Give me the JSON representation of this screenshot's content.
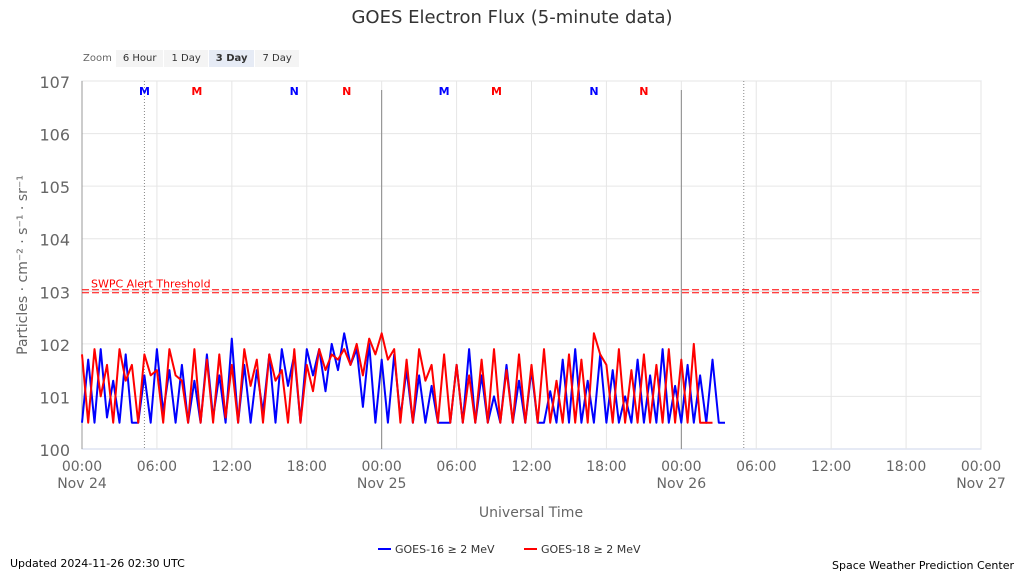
{
  "chart_data": {
    "type": "line",
    "title": "GOES Electron Flux (5-minute data)",
    "xlabel": "Universal Time",
    "ylabel": "Particles · cm⁻² · s⁻¹ · sr⁻¹",
    "y_scale": "log10",
    "ylim": [
      0,
      7
    ],
    "xlim_hours": [
      0,
      72
    ],
    "y_tick_labels": [
      "100",
      "101",
      "102",
      "103",
      "104",
      "105",
      "106",
      "107"
    ],
    "x_tick_labels": [
      {
        "h": 0,
        "time": "00:00",
        "date": "Nov 24"
      },
      {
        "h": 6,
        "time": "06:00"
      },
      {
        "h": 12,
        "time": "12:00"
      },
      {
        "h": 18,
        "time": "18:00"
      },
      {
        "h": 24,
        "time": "00:00",
        "date": "Nov 25"
      },
      {
        "h": 30,
        "time": "06:00"
      },
      {
        "h": 36,
        "time": "12:00"
      },
      {
        "h": 42,
        "time": "18:00"
      },
      {
        "h": 48,
        "time": "00:00",
        "date": "Nov 26"
      },
      {
        "h": 54,
        "time": "06:00"
      },
      {
        "h": 60,
        "time": "12:00"
      },
      {
        "h": 66,
        "time": "18:00"
      },
      {
        "h": 72,
        "time": "00:00",
        "date": "Nov 27"
      }
    ],
    "threshold": {
      "label": "SWPC Alert Threshold",
      "log_value": 3,
      "color": "#ff0000"
    },
    "markers": [
      {
        "h": 5.0,
        "label": "M",
        "color": "#0000ff"
      },
      {
        "h": 9.2,
        "label": "M",
        "color": "#ff0000"
      },
      {
        "h": 17.0,
        "label": "N",
        "color": "#0000ff"
      },
      {
        "h": 21.2,
        "label": "N",
        "color": "#ff0000"
      },
      {
        "h": 29.0,
        "label": "M",
        "color": "#0000ff"
      },
      {
        "h": 33.2,
        "label": "M",
        "color": "#ff0000"
      },
      {
        "h": 41.0,
        "label": "N",
        "color": "#0000ff"
      },
      {
        "h": 45.0,
        "label": "N",
        "color": "#ff0000"
      }
    ],
    "dotted_lines_h": [
      5.0,
      53.0
    ],
    "solid_lines_h": [
      24,
      48
    ],
    "series": [
      {
        "name": "GOES-16 ≥ 2 MeV",
        "color": "#0000ff",
        "step_hours": 0.5,
        "log_values": [
          0.5,
          1.7,
          0.5,
          1.9,
          0.6,
          1.3,
          0.5,
          1.8,
          0.5,
          0.5,
          1.4,
          0.5,
          1.9,
          0.7,
          1.5,
          0.5,
          1.6,
          0.5,
          1.3,
          0.5,
          1.8,
          0.6,
          1.4,
          0.5,
          2.1,
          0.5,
          1.6,
          0.5,
          1.5,
          0.7,
          1.8,
          0.5,
          1.9,
          1.2,
          1.8,
          0.5,
          1.9,
          1.4,
          1.9,
          1.1,
          2.0,
          1.5,
          2.2,
          1.6,
          1.9,
          0.8,
          2.0,
          0.5,
          1.7,
          0.5,
          1.8,
          0.6,
          1.5,
          0.5,
          1.4,
          0.5,
          1.2,
          0.5,
          0.5,
          0.5,
          1.6,
          0.5,
          1.9,
          0.5,
          1.4,
          0.5,
          1.0,
          0.5,
          1.6,
          0.5,
          1.3,
          0.5,
          1.5,
          0.5,
          0.5,
          1.1,
          0.5,
          1.7,
          0.5,
          1.9,
          0.5,
          1.3,
          0.5,
          1.8,
          0.5,
          1.5,
          0.5,
          1.0,
          0.5,
          1.7,
          0.5,
          1.4,
          0.5,
          1.9,
          0.5,
          1.2,
          0.5,
          1.6,
          0.5,
          1.4,
          0.5,
          1.7,
          0.5,
          0.5
        ]
      },
      {
        "name": "GOES-18 ≥ 2 MeV",
        "color": "#ff0000",
        "step_hours": 0.5,
        "log_values": [
          1.8,
          0.5,
          1.9,
          1.0,
          1.6,
          0.5,
          1.9,
          1.3,
          1.6,
          0.5,
          1.8,
          1.4,
          1.5,
          0.5,
          1.9,
          1.4,
          1.3,
          0.5,
          1.9,
          0.5,
          1.7,
          0.5,
          1.8,
          0.6,
          1.6,
          0.5,
          1.9,
          1.2,
          1.7,
          0.5,
          1.8,
          1.3,
          1.5,
          0.5,
          1.9,
          0.5,
          1.6,
          1.1,
          1.9,
          1.5,
          1.8,
          1.7,
          1.9,
          1.6,
          2.0,
          1.4,
          2.1,
          1.8,
          2.2,
          1.7,
          1.9,
          0.5,
          1.7,
          0.5,
          1.9,
          1.3,
          1.6,
          0.5,
          1.8,
          0.5,
          1.6,
          0.5,
          1.4,
          0.5,
          1.7,
          0.5,
          1.9,
          0.5,
          1.5,
          0.5,
          1.8,
          0.5,
          1.6,
          0.5,
          1.9,
          0.5,
          1.3,
          0.5,
          1.8,
          0.5,
          1.7,
          0.5,
          2.2,
          1.8,
          1.6,
          0.5,
          1.9,
          0.5,
          1.5,
          0.5,
          1.8,
          0.5,
          1.6,
          0.5,
          1.9,
          0.5,
          1.7,
          0.5,
          2.0,
          0.5,
          0.5,
          0.5
        ]
      }
    ]
  },
  "zoom": {
    "label": "Zoom",
    "buttons": [
      "6 Hour",
      "1 Day",
      "3 Day",
      "7 Day"
    ],
    "active": "3 Day"
  },
  "footer": {
    "updated": "Updated 2024-11-26 02:30 UTC",
    "credit": "Space Weather Prediction Center"
  }
}
